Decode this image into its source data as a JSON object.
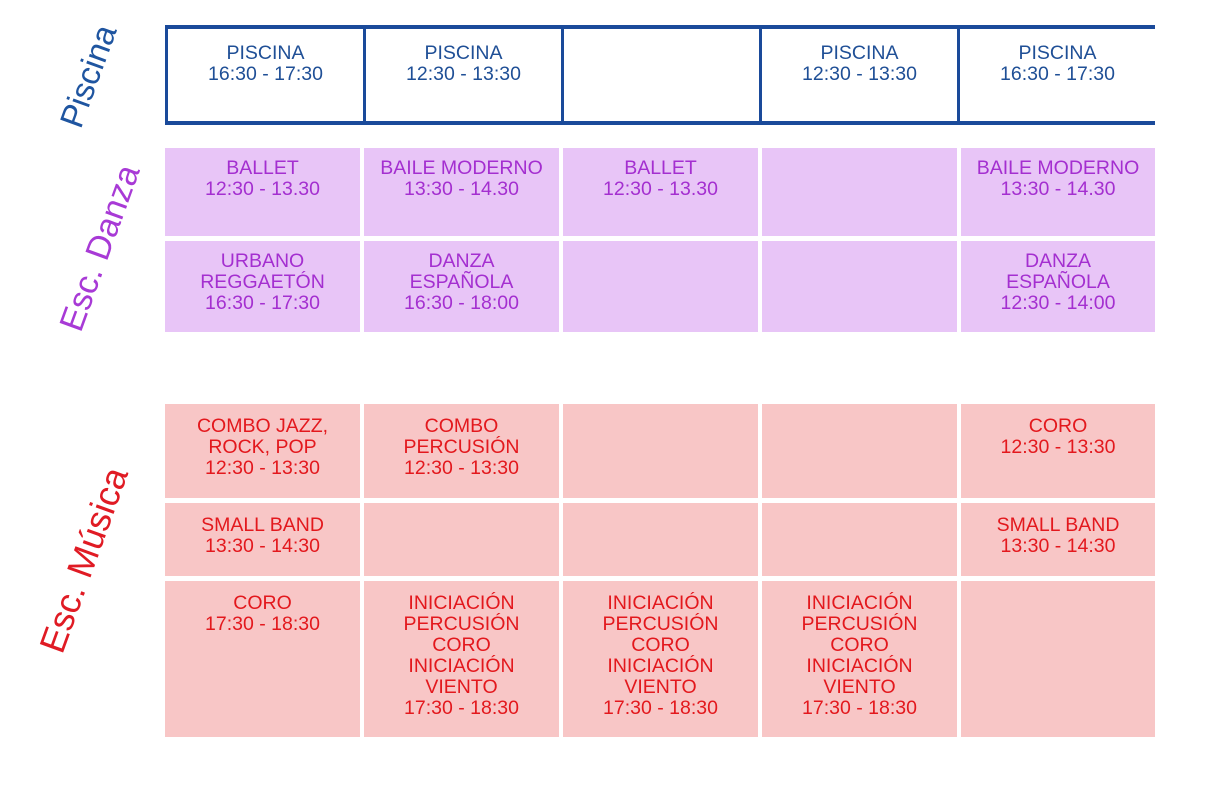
{
  "labels": {
    "piscina": "Piscina",
    "danza": "Esc. Danza",
    "musica": "Esc. Música"
  },
  "piscina": [
    {
      "l1": "PISCINA",
      "l2": "16:30 - 17:30"
    },
    {
      "l1": "PISCINA",
      "l2": "12:30 - 13:30"
    },
    {
      "l1": "",
      "l2": ""
    },
    {
      "l1": "PISCINA",
      "l2": "12:30 - 13:30"
    },
    {
      "l1": "PISCINA",
      "l2": "16:30 - 17:30"
    }
  ],
  "danza": {
    "row1": [
      {
        "l1": "BALLET",
        "l2": "12:30 - 13.30"
      },
      {
        "l1": "BAILE MODERNO",
        "l2": "13:30 - 14.30"
      },
      {
        "l1": "BALLET",
        "l2": "12:30 - 13.30"
      },
      {
        "l1": "",
        "l2": ""
      },
      {
        "l1": "BAILE MODERNO",
        "l2": "13:30 - 14.30"
      }
    ],
    "row2": [
      {
        "l1": "URBANO",
        "l2": "REGGAETÓN",
        "l3": "16:30 - 17:30"
      },
      {
        "l1": "DANZA",
        "l2": "ESPAÑOLA",
        "l3": "16:30 - 18:00"
      },
      {
        "l1": "",
        "l2": "",
        "l3": ""
      },
      {
        "l1": "",
        "l2": "",
        "l3": ""
      },
      {
        "l1": "DANZA",
        "l2": "ESPAÑOLA",
        "l3": "12:30 - 14:00"
      }
    ]
  },
  "musica": {
    "row1": [
      {
        "l1": "COMBO JAZZ,",
        "l2": "ROCK, POP",
        "l3": "12:30 - 13:30"
      },
      {
        "l1": "COMBO",
        "l2": "PERCUSIÓN",
        "l3": "12:30 - 13:30"
      },
      {
        "l1": "",
        "l2": "",
        "l3": ""
      },
      {
        "l1": "",
        "l2": "",
        "l3": ""
      },
      {
        "l1": "CORO",
        "l2": "12:30 - 13:30",
        "l3": ""
      }
    ],
    "row2": [
      {
        "l1": "SMALL BAND",
        "l2": "13:30 - 14:30"
      },
      {
        "l1": "",
        "l2": ""
      },
      {
        "l1": "",
        "l2": ""
      },
      {
        "l1": "",
        "l2": ""
      },
      {
        "l1": "SMALL BAND",
        "l2": "13:30 - 14:30"
      }
    ],
    "row3": [
      {
        "l1": "CORO",
        "l2": "17:30 - 18:30",
        "l3": "",
        "l4": "",
        "l5": "",
        "l6": ""
      },
      {
        "l1": "INICIACIÓN",
        "l2": "PERCUSIÓN",
        "l3": "CORO",
        "l4": "INICIACIÓN",
        "l5": "VIENTO",
        "l6": "17:30 - 18:30"
      },
      {
        "l1": "INICIACIÓN",
        "l2": "PERCUSIÓN",
        "l3": "CORO",
        "l4": "INICIACIÓN",
        "l5": "VIENTO",
        "l6": "17:30 - 18:30"
      },
      {
        "l1": "INICIACIÓN",
        "l2": "PERCUSIÓN",
        "l3": "CORO",
        "l4": "INICIACIÓN",
        "l5": "VIENTO",
        "l6": "17:30 - 18:30"
      },
      {
        "l1": "",
        "l2": "",
        "l3": "",
        "l4": "",
        "l5": "",
        "l6": ""
      }
    ]
  }
}
